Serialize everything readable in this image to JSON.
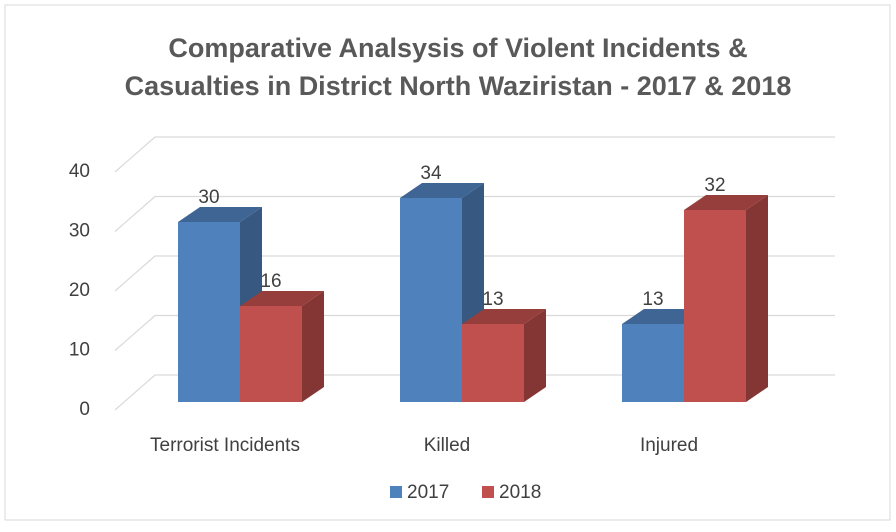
{
  "chart_data": {
    "type": "bar3d",
    "title": [
      "Comparative Analsysis of Violent Incidents &",
      "Casualties in District North Waziristan - 2017 & 2018"
    ],
    "categories": [
      "Terrorist Incidents",
      "Killed",
      "Injured"
    ],
    "series": [
      {
        "name": "2017",
        "color": "#4f81bd",
        "values": [
          30,
          34,
          13
        ]
      },
      {
        "name": "2018",
        "color": "#c0504d",
        "values": [
          16,
          13,
          32
        ]
      }
    ],
    "ylim": [
      0,
      40
    ],
    "yticks": [
      0,
      10,
      20,
      30,
      40
    ],
    "grid": true,
    "legend": "bottom"
  }
}
